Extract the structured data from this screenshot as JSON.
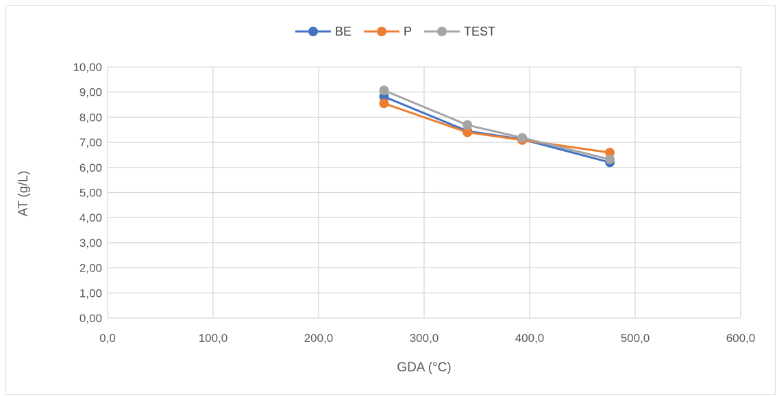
{
  "chart_data": {
    "type": "scatter",
    "xlabel": "GDA (°C)",
    "ylabel": "AT (g/L)",
    "xlim": [
      0,
      600
    ],
    "ylim": [
      0,
      10
    ],
    "x_ticks": [
      "0,0",
      "100,0",
      "200,0",
      "300,0",
      "400,0",
      "500,0",
      "600,0"
    ],
    "y_ticks": [
      "0,00",
      "1,00",
      "2,00",
      "3,00",
      "4,00",
      "5,00",
      "6,00",
      "7,00",
      "8,00",
      "9,00",
      "10,00"
    ],
    "grid": true,
    "legend_position": "top-center",
    "series": [
      {
        "name": "BE",
        "color": "#4472C4",
        "x": [
          262,
          341,
          393,
          476
        ],
        "y": [
          8.82,
          7.45,
          7.12,
          6.2
        ]
      },
      {
        "name": "P",
        "color": "#ED7D31",
        "x": [
          262,
          341,
          393,
          476
        ],
        "y": [
          8.55,
          7.4,
          7.09,
          6.59
        ]
      },
      {
        "name": "TEST",
        "color": "#A5A5A5",
        "x": [
          262,
          341,
          393,
          476
        ],
        "y": [
          9.07,
          7.69,
          7.18,
          6.32
        ]
      }
    ]
  }
}
